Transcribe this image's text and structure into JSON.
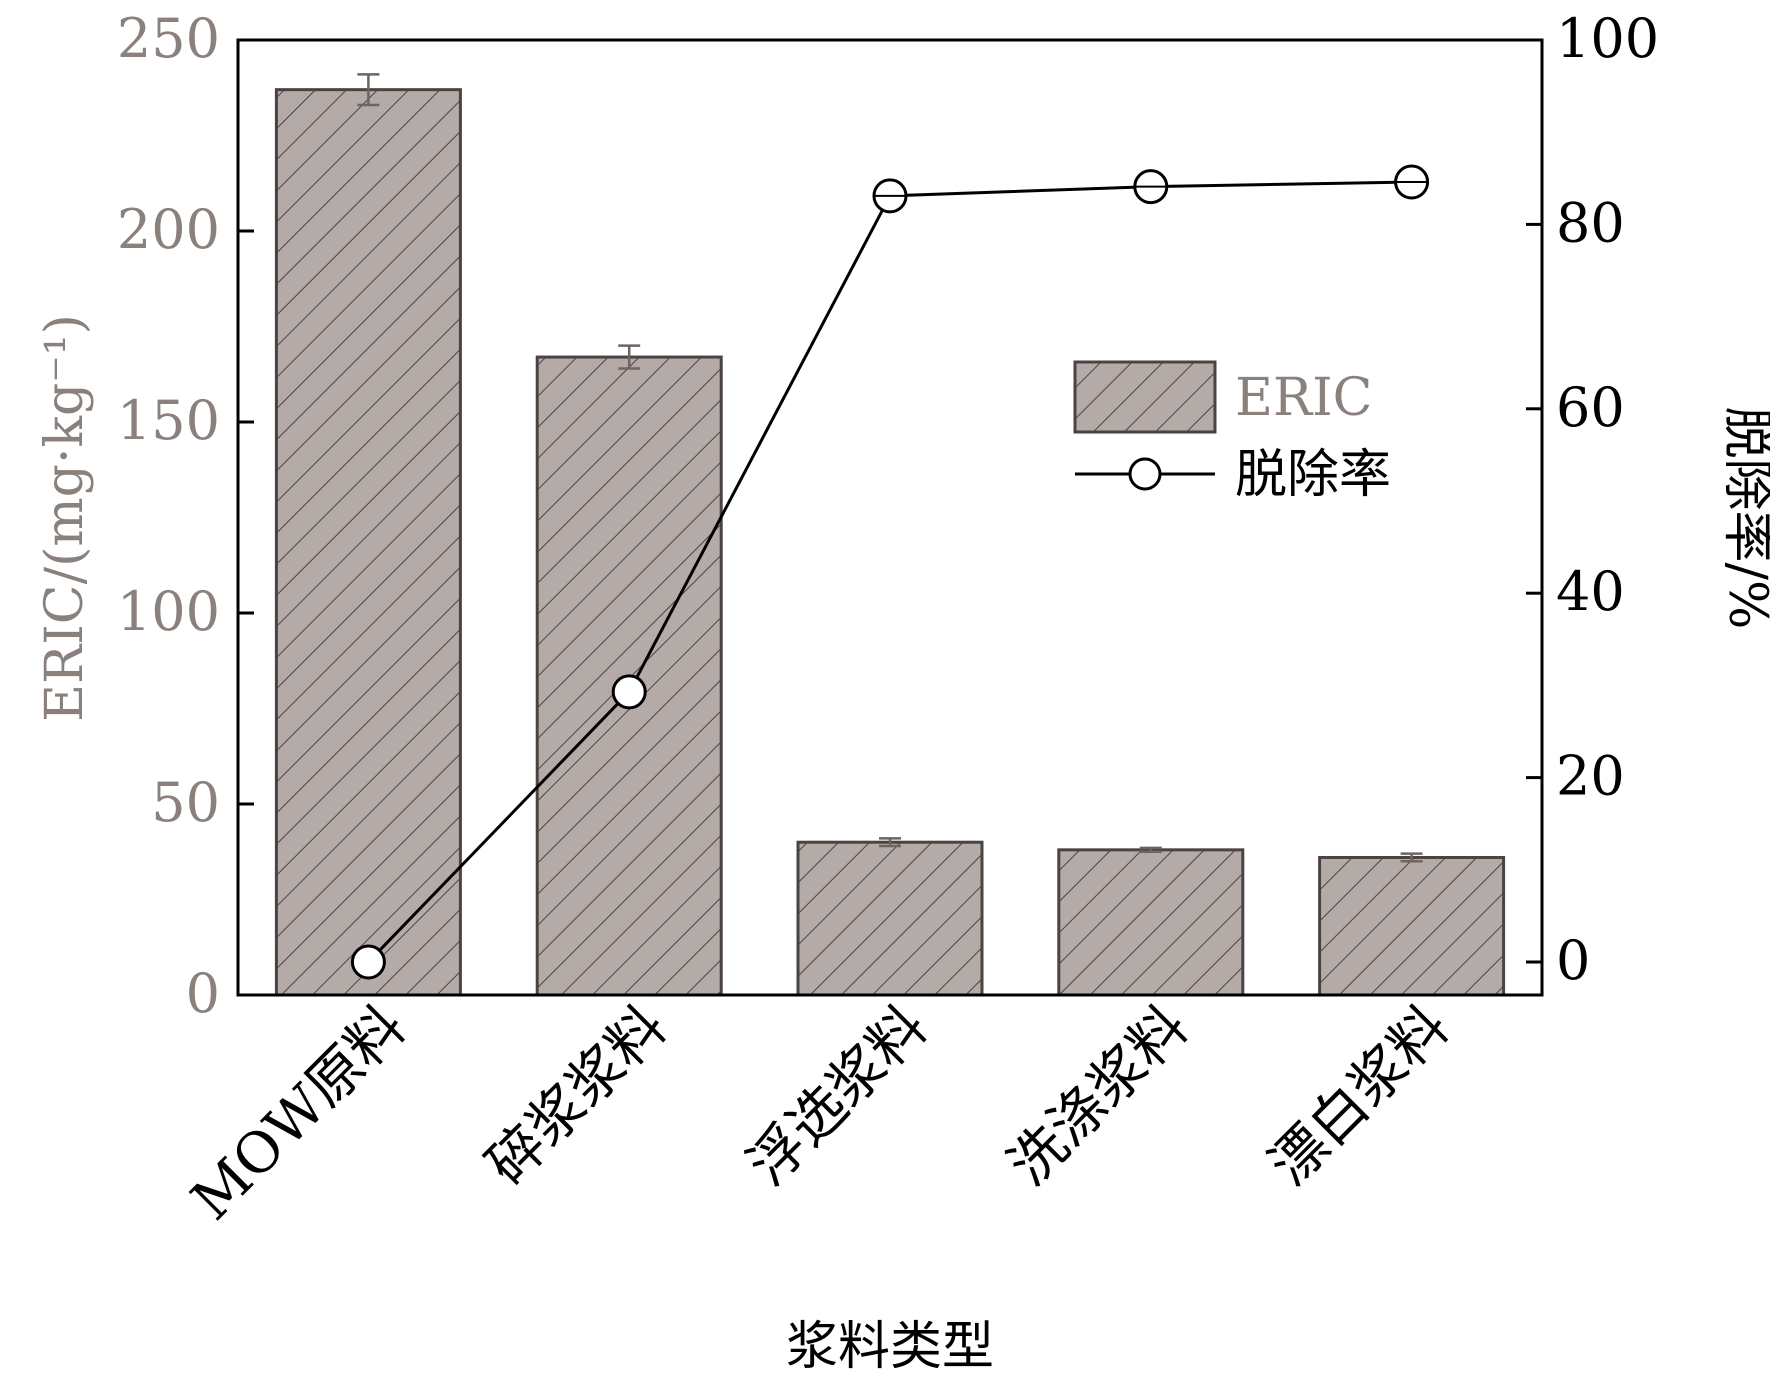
{
  "chart_data": {
    "type": "bar",
    "title": "",
    "xlabel": "浆料类型",
    "ylabel_left": "ERIC/(mg·kg⁻¹)",
    "ylabel_right": "脱除率/%",
    "categories": [
      "MOW原料",
      "碎浆浆料",
      "浮选浆料",
      "洗涤浆料",
      "漂白浆料"
    ],
    "ylim_left": [
      0,
      250
    ],
    "ylim_right": [
      0,
      100
    ],
    "yticks_left": [
      "0",
      "50",
      "100",
      "150",
      "200",
      "250"
    ],
    "yticks_right": [
      "0",
      "20",
      "40",
      "60",
      "80",
      "100"
    ],
    "grid": false,
    "legend_position": "right-center",
    "series": [
      {
        "name": "ERIC",
        "kind": "bar",
        "axis": "left",
        "values": [
          237,
          167,
          40,
          38,
          36
        ],
        "errors": [
          4,
          3,
          1,
          0.5,
          1
        ]
      },
      {
        "name": "脱除率",
        "kind": "line",
        "axis": "right",
        "values": [
          0,
          29.3,
          83.1,
          84.1,
          84.6
        ]
      }
    ],
    "colors": {
      "bar_fill": "#b4aaa7",
      "hatch": "#4a4341",
      "bar_edge": "#4a4341",
      "line": "#000000",
      "left_axis_text": "#8a807c",
      "axis": "#000000"
    }
  }
}
